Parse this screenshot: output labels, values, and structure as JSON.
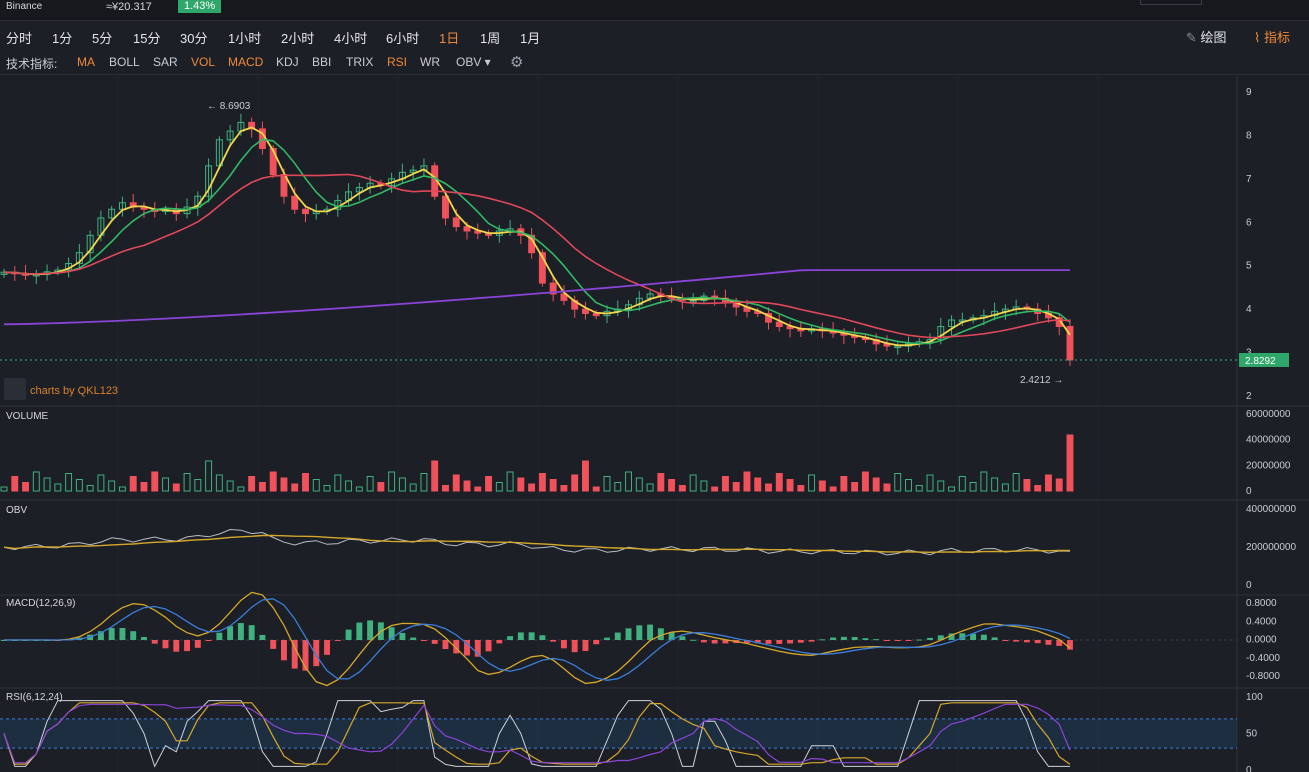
{
  "header": {
    "exchange": "Binance",
    "cny_price": "≈¥20.317",
    "change_pct": "1.43%"
  },
  "timeframes": [
    {
      "label": "分时",
      "active": false
    },
    {
      "label": "1分",
      "active": false
    },
    {
      "label": "5分",
      "active": false
    },
    {
      "label": "15分",
      "active": false
    },
    {
      "label": "30分",
      "active": false
    },
    {
      "label": "1小时",
      "active": false
    },
    {
      "label": "2小时",
      "active": false
    },
    {
      "label": "4小时",
      "active": false
    },
    {
      "label": "6小时",
      "active": false
    },
    {
      "label": "1日",
      "active": true
    },
    {
      "label": "1周",
      "active": false
    },
    {
      "label": "1月",
      "active": false
    }
  ],
  "tools": {
    "draw_label": "绘图",
    "indicator_label": "指标"
  },
  "indicators": {
    "label": "技术指标:",
    "items": [
      {
        "label": "MA",
        "active": true
      },
      {
        "label": "BOLL",
        "active": false
      },
      {
        "label": "SAR",
        "active": false
      },
      {
        "label": "VOL",
        "active": true
      },
      {
        "label": "MACD",
        "active": true
      },
      {
        "label": "KDJ",
        "active": false
      },
      {
        "label": "BBI",
        "active": false
      },
      {
        "label": "TRIX",
        "active": false
      },
      {
        "label": "RSI",
        "active": true
      },
      {
        "label": "WR",
        "active": false
      },
      {
        "label": "OBV ▾",
        "active": false
      }
    ]
  },
  "colors": {
    "up": "#3fb27f",
    "down": "#f0515a",
    "ma1": "#f2d64b",
    "ma2": "#33b865",
    "ma3": "#e0485a",
    "ma4": "#8b44d8",
    "accent": "#ef8a3a"
  },
  "price_panel": {
    "high_label": "← 8.6903",
    "low_label": "2.4212 →",
    "last_price": "2.8292",
    "watermark": "charts by QKL123",
    "y_ticks": [
      "9",
      "8",
      "7",
      "6",
      "5",
      "4",
      "3",
      "2"
    ]
  },
  "volume_panel": {
    "title": "VOLUME",
    "y_ticks": [
      "60000000",
      "40000000",
      "20000000",
      "0"
    ]
  },
  "obv_panel": {
    "title": "OBV",
    "y_ticks": [
      "400000000",
      "200000000",
      "0"
    ]
  },
  "macd_panel": {
    "title": "MACD(12,26,9)",
    "y_ticks": [
      "0.8000",
      "0.4000",
      "0.0000",
      "-0.4000",
      "-0.8000"
    ]
  },
  "rsi_panel": {
    "title": "RSI(6,12,24)",
    "y_ticks": [
      "100",
      "50",
      "0"
    ]
  },
  "chart_data": {
    "type": "candlestick",
    "y_range": [
      2,
      9
    ],
    "high": 8.6903,
    "low": 2.4212,
    "last": 2.8292,
    "close_series": [
      4.85,
      4.82,
      4.78,
      4.8,
      4.86,
      4.9,
      5.05,
      5.3,
      5.7,
      6.1,
      6.3,
      6.45,
      6.35,
      6.3,
      6.25,
      6.3,
      6.2,
      6.35,
      6.6,
      7.3,
      7.9,
      8.1,
      8.3,
      8.15,
      7.7,
      7.1,
      6.6,
      6.3,
      6.2,
      6.25,
      6.3,
      6.5,
      6.7,
      6.8,
      6.9,
      6.85,
      7.0,
      7.15,
      7.2,
      7.3,
      6.6,
      6.1,
      5.9,
      5.8,
      5.75,
      5.7,
      5.8,
      5.85,
      5.7,
      5.3,
      4.6,
      4.35,
      4.2,
      4.0,
      3.9,
      3.85,
      3.95,
      4.0,
      4.1,
      4.25,
      4.35,
      4.3,
      4.25,
      4.2,
      4.2,
      4.3,
      4.25,
      4.15,
      4.05,
      3.95,
      3.9,
      3.7,
      3.6,
      3.55,
      3.5,
      3.55,
      3.5,
      3.45,
      3.4,
      3.35,
      3.3,
      3.2,
      3.15,
      3.15,
      3.2,
      3.25,
      3.3,
      3.6,
      3.75,
      3.75,
      3.8,
      3.85,
      3.95,
      4.0,
      4.05,
      4.0,
      3.9,
      3.8,
      3.6,
      2.83
    ],
    "ma_series": [
      {
        "name": "MA5",
        "color": "#f2d64b"
      },
      {
        "name": "MA10",
        "color": "#33b865"
      },
      {
        "name": "MA30",
        "color": "#e0485a"
      },
      {
        "name": "MA120",
        "color": "#8b44d8"
      }
    ],
    "volume_ticks": [
      0,
      20000000,
      40000000,
      60000000
    ],
    "obv_ticks": [
      0,
      200000000,
      400000000
    ],
    "macd_ticks": [
      -0.8,
      -0.4,
      0,
      0.4,
      0.8
    ],
    "rsi_ticks": [
      0,
      50,
      100
    ]
  }
}
